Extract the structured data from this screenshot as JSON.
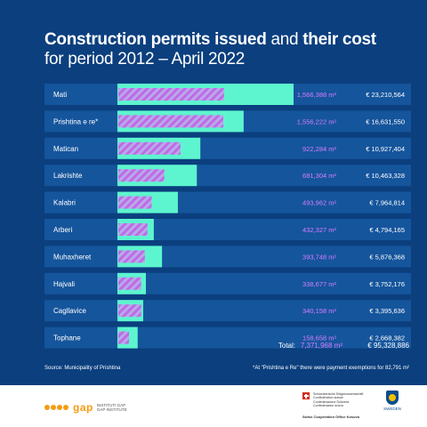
{
  "title": {
    "bold1": "Construction permits issued",
    "normal1": "and",
    "bold2": "their cost",
    "line2": "for period 2012 – April 2022"
  },
  "colors": {
    "background": "#0b3f7e",
    "row_band": "#15559c",
    "bar": "#5df5cf",
    "hatch": "#c06ae8",
    "area_text": "#d67dff",
    "cost_text": "#ffffff"
  },
  "chart_data": {
    "type": "bar",
    "orientation": "horizontal",
    "categories": [
      "Mati",
      "Prishtina e re*",
      "Matican",
      "Lakrishte",
      "Kalabri",
      "Arberi",
      "Muhaxheret",
      "Hajvali",
      "Cagllavice",
      "Tophane"
    ],
    "series": [
      {
        "values": [
          1566388,
          1556222,
          922284,
          681304,
          493962,
          432327,
          393748,
          338677,
          340158,
          158658
        ],
        "value_labels": [
          "1,566,388 m²",
          "1,556,222 m²",
          "922,284 m²",
          "681,304 m²",
          "493,962 m²",
          "432,327 m²",
          "393,748 m²",
          "338,677 m²",
          "340,158 m²",
          "158,658 m²"
        ]
      },
      {
        "values": [
          23210564,
          16631550,
          10927404,
          10463328,
          7964814,
          4794165,
          5876368,
          3752176,
          3395636,
          2668382
        ],
        "value_labels": [
          "€ 23,210,564",
          "€ 16,631,550",
          "€ 10,927,404",
          "€ 10,463,328",
          "€ 7,964,814",
          "€ 4,794,165",
          "€ 5,876,368",
          "€ 3,752,176",
          "€ 3,395,636",
          "€ 2,668,382"
        ]
      }
    ],
    "total_label": "Total:",
    "total_area": "7,371,968 m²",
    "total_cost": "€ 95,328,886"
  },
  "footer": {
    "source": "Source: Municipality of Prishtina",
    "note": "*At \"Prishtina e Re\" there were payment exemptions for 82,791 m²"
  },
  "logos": {
    "gap_word": "gap",
    "gap_sub1": "INSTITUTI GAP",
    "gap_sub2": "GAP INSTITUTE",
    "swiss_lines": [
      "Schweizerische Eidgenossenschaft",
      "Confédération suisse",
      "Confederazione Svizzera",
      "Confederaziun svizra"
    ],
    "swiss_office": "Swiss Cooperation Office Kosovo",
    "sweden": "SWEDEN"
  }
}
